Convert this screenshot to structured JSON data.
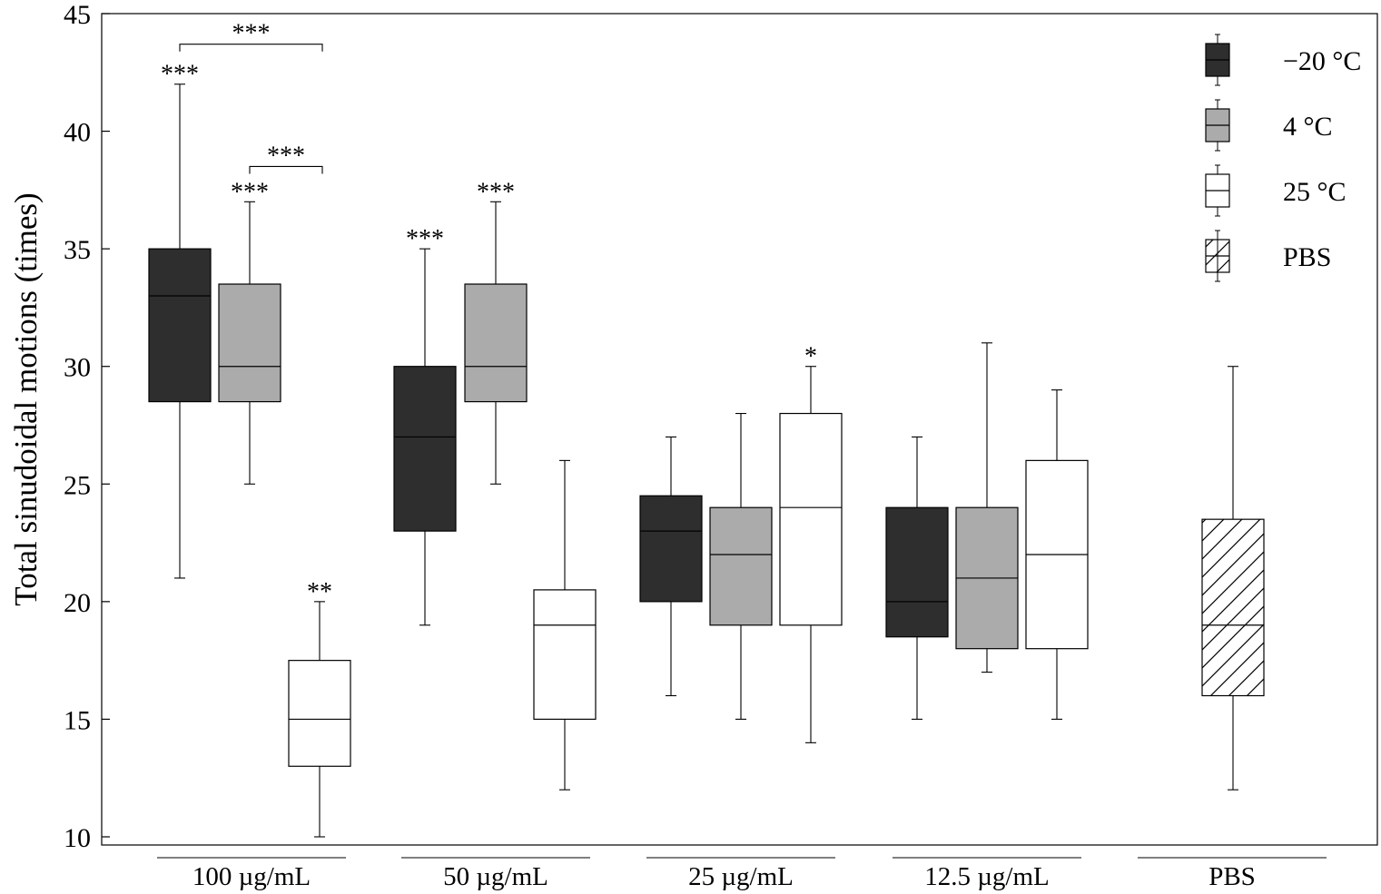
{
  "chart_data": {
    "type": "boxplot",
    "title": "",
    "xlabel": "",
    "ylabel": "Total sinudoidal motions (times)",
    "ylim": [
      10,
      45
    ],
    "yticks": [
      10,
      15,
      20,
      25,
      30,
      35,
      40,
      45
    ],
    "legend_position": "top-right",
    "series": [
      {
        "name": "−20 °C",
        "style": "dark",
        "fill": "#2e2e2e"
      },
      {
        "name": "4 °C",
        "style": "gray",
        "fill": "#ababab"
      },
      {
        "name": "25 °C",
        "style": "white",
        "fill": "#ffffff"
      },
      {
        "name": "PBS",
        "style": "hatched",
        "fill": "#ffffff"
      }
    ],
    "groups": [
      {
        "label": "100 µg/mL",
        "boxes": [
          {
            "series": 0,
            "min": 21,
            "q1": 28.5,
            "median": 33,
            "q3": 35,
            "max": 42,
            "sig": "***"
          },
          {
            "series": 1,
            "min": 25,
            "q1": 28.5,
            "median": 30,
            "q3": 33.5,
            "max": 37,
            "sig": "***"
          },
          {
            "series": 2,
            "min": 10,
            "q1": 13,
            "median": 15,
            "q3": 17.5,
            "max": 20,
            "sig": "**"
          }
        ]
      },
      {
        "label": "50 µg/mL",
        "boxes": [
          {
            "series": 0,
            "min": 19,
            "q1": 23,
            "median": 27,
            "q3": 30,
            "max": 35,
            "sig": "***"
          },
          {
            "series": 1,
            "min": 25,
            "q1": 28.5,
            "median": 30,
            "q3": 33.5,
            "max": 37,
            "sig": "***"
          },
          {
            "series": 2,
            "min": 12,
            "q1": 15,
            "median": 19,
            "q3": 20.5,
            "max": 26,
            "sig": ""
          }
        ]
      },
      {
        "label": "25 µg/mL",
        "boxes": [
          {
            "series": 0,
            "min": 16,
            "q1": 20,
            "median": 23,
            "q3": 24.5,
            "max": 27,
            "sig": ""
          },
          {
            "series": 1,
            "min": 15,
            "q1": 19,
            "median": 22,
            "q3": 24,
            "max": 28,
            "sig": ""
          },
          {
            "series": 2,
            "min": 14,
            "q1": 19,
            "median": 24,
            "q3": 28,
            "max": 30,
            "sig": "*"
          }
        ]
      },
      {
        "label": "12.5 µg/mL",
        "boxes": [
          {
            "series": 0,
            "min": 15,
            "q1": 18.5,
            "median": 20,
            "q3": 24,
            "max": 27,
            "sig": ""
          },
          {
            "series": 1,
            "min": 17,
            "q1": 18,
            "median": 21,
            "q3": 24,
            "max": 31,
            "sig": ""
          },
          {
            "series": 2,
            "min": 15,
            "q1": 18,
            "median": 22,
            "q3": 26,
            "max": 29,
            "sig": ""
          }
        ]
      },
      {
        "label": "PBS",
        "boxes": [
          {
            "series": 3,
            "min": 12,
            "q1": 16,
            "median": 19,
            "q3": 23.5,
            "max": 30,
            "sig": ""
          }
        ]
      }
    ],
    "brackets": [
      {
        "group": 0,
        "from_box": 0,
        "to_box": 2,
        "y": 43.7,
        "label": "***"
      },
      {
        "group": 0,
        "from_box": 1,
        "to_box": 2,
        "y": 38.5,
        "label": "***"
      }
    ]
  }
}
